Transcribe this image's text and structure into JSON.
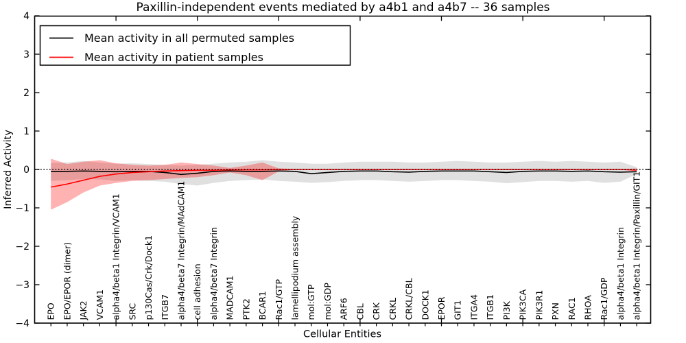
{
  "title": "Paxillin-independent events mediated by a4b1 and a4b7 -- 36 samples",
  "axes": {
    "x_label": "Cellular Entities",
    "y_label": "Inferred Activity"
  },
  "chart_data": {
    "type": "line",
    "title": "Paxillin-independent events mediated by a4b1 and a4b7 -- 36 samples",
    "xlabel": "Cellular Entities",
    "ylabel": "Inferred Activity",
    "ylim": [
      -4,
      4
    ],
    "yticks": [
      4,
      3,
      2,
      1,
      0,
      -1,
      -2,
      -3,
      -4
    ],
    "ytick_labels": [
      "4",
      "3",
      "2",
      "1",
      "0",
      "−1",
      "−2",
      "−3",
      "−4"
    ],
    "xticks_every": 5,
    "grid": false,
    "legend_position": "upper left",
    "zero_line": {
      "style": "dotted",
      "color": "#000000",
      "y": 0
    },
    "categories": [
      "EPO",
      "EPO/EPOR (dimer)",
      "JAK2",
      "VCAM1",
      "alpha4/beta1 Integrin/VCAM1",
      "SRC",
      "p130Cas/Crk/Dock1",
      "ITGB7",
      "alpha4/beta7 Integrin/MAdCAM1",
      "cell adhesion",
      "alpha4/beta7 Integrin",
      "MADCAM1",
      "PTK2",
      "BCAR1",
      "Rac1/GTP",
      "lamellipodium assembly",
      "mol:GTP",
      "mol:GDP",
      "ARF6",
      "CBL",
      "CRK",
      "CRKL",
      "CRKL/CBL",
      "DOCK1",
      "EPOR",
      "GIT1",
      "ITGA4",
      "ITGB1",
      "PI3K",
      "PIK3CA",
      "PIK3R1",
      "PXN",
      "RAC1",
      "RHOA",
      "Rac1/GDP",
      "alpha4/beta1 Integrin",
      "alpha4/beta1 Integrin/Paxillin/GIT1"
    ],
    "series": [
      {
        "name": "Mean activity in all permuted samples",
        "color": "#000000",
        "line_width": 1.6,
        "values": [
          -0.05,
          -0.05,
          -0.04,
          -0.05,
          -0.06,
          -0.05,
          -0.05,
          -0.08,
          -0.13,
          -0.1,
          -0.05,
          -0.04,
          -0.05,
          -0.05,
          -0.04,
          -0.05,
          -0.11,
          -0.08,
          -0.05,
          -0.04,
          -0.04,
          -0.06,
          -0.07,
          -0.05,
          -0.04,
          -0.04,
          -0.04,
          -0.06,
          -0.08,
          -0.05,
          -0.04,
          -0.04,
          -0.05,
          -0.04,
          -0.06,
          -0.07,
          -0.06
        ],
        "band": {
          "fill": "rgba(0,0,0,0.12)",
          "upper": [
            0.17,
            0.18,
            0.22,
            0.18,
            0.15,
            0.16,
            0.14,
            0.12,
            0.1,
            0.12,
            0.15,
            0.18,
            0.2,
            0.24,
            0.2,
            0.18,
            0.15,
            0.15,
            0.18,
            0.2,
            0.2,
            0.2,
            0.18,
            0.18,
            0.2,
            0.22,
            0.2,
            0.18,
            0.18,
            0.2,
            0.22,
            0.2,
            0.22,
            0.2,
            0.18,
            0.2,
            0.06
          ],
          "lower": [
            -0.3,
            -0.28,
            -0.25,
            -0.26,
            -0.3,
            -0.28,
            -0.3,
            -0.32,
            -0.38,
            -0.42,
            -0.35,
            -0.3,
            -0.28,
            -0.26,
            -0.3,
            -0.32,
            -0.35,
            -0.33,
            -0.3,
            -0.28,
            -0.28,
            -0.3,
            -0.32,
            -0.3,
            -0.28,
            -0.28,
            -0.3,
            -0.32,
            -0.36,
            -0.33,
            -0.3,
            -0.3,
            -0.32,
            -0.3,
            -0.35,
            -0.32,
            -0.12
          ]
        }
      },
      {
        "name": "Mean activity in patient samples",
        "color": "#ff0000",
        "line_width": 1.6,
        "values": [
          -0.46,
          -0.38,
          -0.28,
          -0.18,
          -0.12,
          -0.08,
          -0.06,
          -0.04,
          -0.03,
          -0.02,
          -0.02,
          -0.01,
          -0.01,
          -0.01,
          0.0,
          0.0,
          0.0,
          0.0,
          0.0,
          0.0,
          0.0,
          0.0,
          0.0,
          0.0,
          0.0,
          0.0,
          0.0,
          0.0,
          0.0,
          0.0,
          0.0,
          0.0,
          0.0,
          0.0,
          0.0,
          0.0,
          -0.02
        ],
        "band": {
          "fill": "rgba(255,0,0,0.30)",
          "upper": [
            0.28,
            0.14,
            0.2,
            0.24,
            0.16,
            0.12,
            0.1,
            0.12,
            0.18,
            0.14,
            0.1,
            0.04,
            0.1,
            0.18,
            0.03,
            0.01,
            0.01,
            0.01,
            0.01,
            0.01,
            0.01,
            0.01,
            0.01,
            0.01,
            0.01,
            0.01,
            0.01,
            0.01,
            0.01,
            0.01,
            0.01,
            0.01,
            0.01,
            0.01,
            0.01,
            0.01,
            0.03
          ],
          "lower": [
            -1.05,
            -0.85,
            -0.6,
            -0.42,
            -0.35,
            -0.3,
            -0.28,
            -0.25,
            -0.22,
            -0.2,
            -0.15,
            -0.08,
            -0.15,
            -0.28,
            -0.05,
            -0.01,
            -0.01,
            -0.01,
            -0.01,
            -0.01,
            -0.01,
            -0.01,
            -0.01,
            -0.01,
            -0.01,
            -0.01,
            -0.01,
            -0.01,
            -0.01,
            -0.01,
            -0.01,
            -0.01,
            -0.01,
            -0.01,
            -0.01,
            -0.01,
            -0.03
          ]
        }
      }
    ]
  }
}
